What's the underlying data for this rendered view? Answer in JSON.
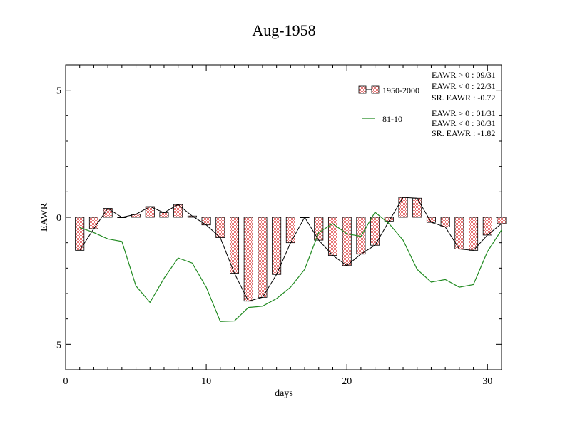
{
  "chart_data": {
    "type": "bar",
    "title": "Aug-1958",
    "xlabel": "days",
    "ylabel": "EAWR",
    "xlim": [
      0,
      31
    ],
    "ylim": [
      -6,
      6
    ],
    "x_ticks": [
      0,
      10,
      20,
      30
    ],
    "y_ticks": [
      -5,
      0,
      5
    ],
    "grid": false,
    "legend_position": "top-right",
    "series": [
      {
        "name": "1950-2000",
        "kind": "bar",
        "color": "#e87878",
        "x": [
          1,
          2,
          3,
          4,
          5,
          6,
          7,
          8,
          9,
          10,
          11,
          12,
          13,
          14,
          15,
          16,
          17,
          18,
          19,
          20,
          21,
          22,
          23,
          24,
          25,
          26,
          27,
          28,
          29,
          30,
          31
        ],
        "values": [
          -1.3,
          -0.45,
          0.35,
          0.0,
          0.12,
          0.42,
          0.18,
          0.5,
          0.05,
          -0.3,
          -0.8,
          -2.2,
          -3.3,
          -3.15,
          -2.25,
          -1.0,
          0.0,
          -0.9,
          -1.5,
          -1.9,
          -1.45,
          -1.1,
          -0.15,
          0.78,
          0.75,
          -0.2,
          -0.38,
          -1.25,
          -1.3,
          -0.7,
          -0.25
        ]
      },
      {
        "name": "81-10",
        "kind": "line",
        "color": "#228b22",
        "x": [
          1,
          2,
          3,
          4,
          5,
          6,
          7,
          8,
          9,
          10,
          11,
          12,
          13,
          14,
          15,
          16,
          17,
          18,
          19,
          20,
          21,
          22,
          23,
          24,
          25,
          26,
          27,
          28,
          29,
          30,
          31
        ],
        "values": [
          -0.4,
          -0.6,
          -0.85,
          -0.95,
          -2.7,
          -3.35,
          -2.4,
          -1.6,
          -1.8,
          -2.75,
          -4.1,
          -4.08,
          -3.55,
          -3.5,
          -3.2,
          -2.75,
          -2.05,
          -0.6,
          -0.25,
          -0.65,
          -0.75,
          0.2,
          -0.25,
          -0.9,
          -2.05,
          -2.55,
          -2.45,
          -2.75,
          -2.65,
          -1.35,
          -0.5
        ]
      }
    ],
    "stats": [
      [
        "EAWR > 0 : 09/31",
        "EAWR < 0 : 22/31",
        "SR. EAWR : -0.72"
      ],
      [
        "EAWR > 0 : 01/31",
        "EAWR < 0 : 30/31",
        "SR. EAWR : -1.82"
      ]
    ]
  }
}
